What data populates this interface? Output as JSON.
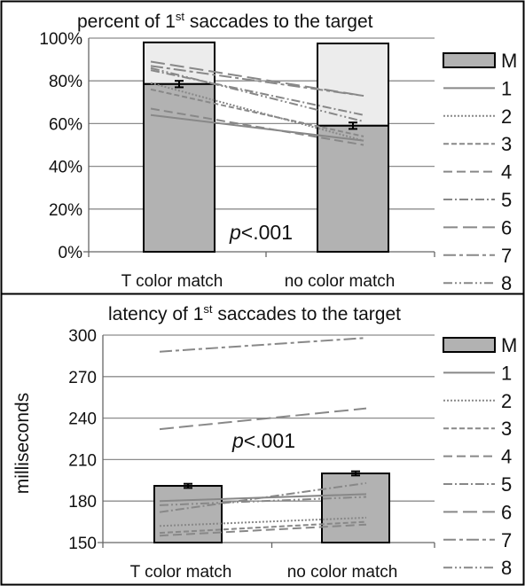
{
  "colors": {
    "bar_fill": "#b2b2b2",
    "bar_top_fill": "#ececec",
    "line": "#888888",
    "grid": "#8c8c8c",
    "border": "#000000"
  },
  "chart_data": [
    {
      "type": "bar",
      "title_main": "percent of 1",
      "title_sup": "st",
      "title_rest": " saccades to the target",
      "categories": [
        "T color match",
        "no color match"
      ],
      "ylim": [
        0,
        100
      ],
      "yticks": [
        "0%",
        "20%",
        "40%",
        "60%",
        "80%",
        "100%"
      ],
      "ytick_values": [
        0,
        20,
        40,
        60,
        80,
        100
      ],
      "bars": [
        {
          "category": "T color match",
          "value": 78.5,
          "stack_top": 98,
          "error": 1.5
        },
        {
          "category": "no color match",
          "value": 59,
          "stack_top": 97.5,
          "error": 1.5
        }
      ],
      "annotation_italic": "p",
      "annotation_rest": "<.001",
      "legend": {
        "placement": "right",
        "entries": [
          "M",
          "1",
          "2",
          "3",
          "4",
          "5",
          "6",
          "7",
          "8"
        ]
      },
      "series": [
        {
          "name": "1",
          "values": [
            64,
            52
          ]
        },
        {
          "name": "2",
          "values": [
            79,
            52
          ]
        },
        {
          "name": "3",
          "values": [
            76,
            54
          ]
        },
        {
          "name": "4",
          "values": [
            67,
            50
          ]
        },
        {
          "name": "5",
          "values": [
            85,
            64
          ]
        },
        {
          "name": "6",
          "values": [
            89,
            73
          ]
        },
        {
          "name": "7",
          "values": [
            87,
            73
          ]
        },
        {
          "name": "8",
          "values": [
            86,
            61
          ]
        }
      ]
    },
    {
      "type": "bar",
      "title_main": "latency of 1",
      "title_sup": "st",
      "title_rest": " saccades to the target",
      "ylabel": "milliseconds",
      "categories": [
        "T color match",
        "no color match"
      ],
      "ylim": [
        150,
        300
      ],
      "yticks": [
        "150",
        "180",
        "210",
        "240",
        "270",
        "300"
      ],
      "ytick_values": [
        150,
        180,
        210,
        240,
        270,
        300
      ],
      "bars": [
        {
          "category": "T color match",
          "value": 191,
          "error": 1.5
        },
        {
          "category": "no color match",
          "value": 200,
          "error": 1.5
        }
      ],
      "annotation_italic": "p",
      "annotation_rest": "<.001",
      "legend": {
        "placement": "right",
        "entries": [
          "M",
          "1",
          "2",
          "3",
          "4",
          "5",
          "6",
          "7",
          "8"
        ]
      },
      "series": [
        {
          "name": "1",
          "values": [
            180,
            185
          ]
        },
        {
          "name": "2",
          "values": [
            162,
            168
          ]
        },
        {
          "name": "3",
          "values": [
            157,
            165
          ]
        },
        {
          "name": "4",
          "values": [
            155,
            163
          ]
        },
        {
          "name": "5",
          "values": [
            172,
            193
          ]
        },
        {
          "name": "6",
          "values": [
            232,
            247
          ]
        },
        {
          "name": "7",
          "values": [
            288,
            298
          ]
        },
        {
          "name": "8",
          "values": [
            177,
            183
          ]
        }
      ]
    }
  ]
}
